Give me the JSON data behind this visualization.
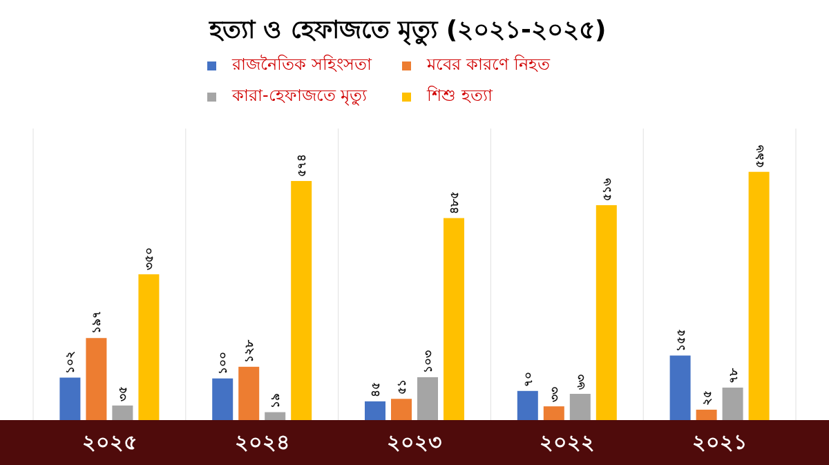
{
  "chart_data": {
    "type": "bar",
    "title": "হত্যা ও হেফাজতে মৃত্যু (২০২১-২০২৫)",
    "categories": [
      "২০২৫",
      "২০২৪",
      "২০২৩",
      "২০২২",
      "২০২১"
    ],
    "series": [
      {
        "name": "রাজনৈতিক সহিংসতা",
        "color": "#4472c4",
        "values": [
          102,
          100,
          45,
          70,
          155
        ],
        "value_labels": [
          "১০২",
          "১০০",
          "৪৫",
          "৭০",
          "১৫৫"
        ]
      },
      {
        "name": "মবের কারণে নিহত",
        "color": "#ed7d31",
        "values": [
          197,
          128,
          51,
          33,
          25
        ],
        "value_labels": [
          "১৯৭",
          "১২৮",
          "৫১",
          "৩৩",
          "২৫"
        ]
      },
      {
        "name": "কারা-হেফাজতে মৃত্যু",
        "color": "#a5a5a5",
        "values": [
          35,
          19,
          103,
          63,
          78
        ],
        "value_labels": [
          "৩৫",
          "১৯",
          "১০৩",
          "৬৩",
          "৭৮"
        ]
      },
      {
        "name": "শিশু হত্যা",
        "color": "#ffc000",
        "values": [
          350,
          574,
          485,
          516,
          596
        ],
        "value_labels": [
          "৩৫০",
          "৫৭৪",
          "৪৮৫",
          "৫১৬",
          "৫৯৬"
        ]
      }
    ],
    "ylim": [
      0,
      700
    ],
    "grid": "x",
    "legend": "top"
  }
}
